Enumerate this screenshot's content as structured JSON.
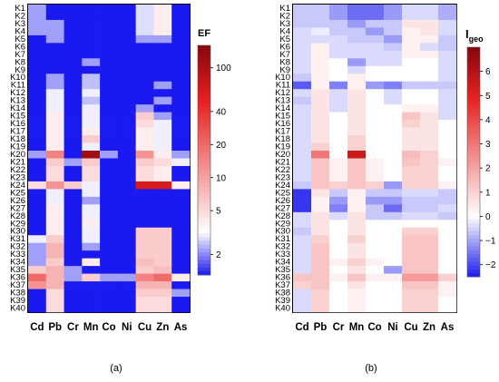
{
  "chart_data": [
    {
      "type": "heatmap",
      "panel_label": "(a)",
      "colorbar_title": "EF",
      "colorbar_ticks": [
        {
          "value": 2,
          "label": "2"
        },
        {
          "value": 5,
          "label": "5"
        },
        {
          "value": 10,
          "label": "10"
        },
        {
          "value": 20,
          "label": "20"
        },
        {
          "value": 40,
          "label": "40"
        },
        {
          "value": 100,
          "label": "100"
        }
      ],
      "colorbar_range": [
        1.3,
        160
      ],
      "colorbar_scale": "log",
      "columns": [
        "Cd",
        "Pb",
        "Cr",
        "Mn",
        "Co",
        "Ni",
        "Cu",
        "Zn",
        "As"
      ],
      "rows": [
        "K1",
        "K2",
        "K3",
        "K4",
        "K5",
        "K6",
        "K7",
        "K8",
        "K9",
        "K10",
        "K11",
        "K12",
        "K13",
        "K14",
        "K15",
        "K16",
        "K17",
        "K18",
        "K19",
        "K20",
        "K21",
        "K22",
        "K23",
        "K24",
        "K25",
        "K26",
        "K27",
        "K28",
        "K29",
        "K30",
        "K31",
        "K32",
        "K33",
        "K34",
        "K35",
        "K36",
        "K37",
        "K38",
        "K39",
        "K40"
      ],
      "values": [
        [
          2.2,
          1,
          1,
          1,
          1,
          1,
          2.8,
          4,
          1
        ],
        [
          2.2,
          1,
          1,
          1,
          1,
          1,
          2.8,
          4,
          1
        ],
        [
          2.2,
          2.2,
          1,
          1,
          1,
          1,
          2.8,
          4,
          1
        ],
        [
          2.2,
          2.2,
          1,
          1,
          1,
          1,
          2.8,
          4,
          1
        ],
        [
          1,
          2.2,
          1,
          1,
          1,
          1,
          2.2,
          2.2,
          1
        ],
        [
          1,
          1,
          1,
          1,
          1,
          1,
          1,
          1,
          1
        ],
        [
          1,
          1,
          1,
          1,
          1,
          1,
          1,
          1,
          1
        ],
        [
          1,
          1,
          1,
          2.2,
          1,
          1,
          1,
          1,
          1
        ],
        [
          1,
          1,
          1,
          1,
          1,
          1,
          1,
          1,
          1
        ],
        [
          1,
          2.2,
          1,
          2.5,
          1,
          1,
          1,
          1,
          1
        ],
        [
          1,
          2.2,
          1,
          2.5,
          1,
          1,
          1,
          2.2,
          1
        ],
        [
          1,
          3,
          1,
          3,
          1,
          1,
          1,
          1,
          1
        ],
        [
          1,
          3,
          1,
          2.5,
          1,
          1,
          1,
          2.2,
          1
        ],
        [
          1,
          3,
          1,
          3,
          1,
          1,
          2.2,
          1,
          1
        ],
        [
          1,
          4,
          1,
          3,
          1,
          1,
          6,
          2.2,
          1
        ],
        [
          1,
          4,
          1,
          3,
          1,
          1,
          5,
          3,
          1
        ],
        [
          1,
          4,
          1,
          4,
          1,
          1,
          4,
          3,
          1
        ],
        [
          1,
          4,
          1,
          6,
          1,
          1,
          4,
          3,
          1
        ],
        [
          1,
          4,
          1,
          3,
          1,
          1,
          4,
          3,
          1
        ],
        [
          2.2,
          15,
          1,
          120,
          2.2,
          1,
          12,
          4,
          2.2
        ],
        [
          1,
          6,
          2.2,
          6,
          1,
          1,
          6,
          5,
          3
        ],
        [
          1,
          5,
          1,
          5,
          1,
          1,
          5,
          4,
          1
        ],
        [
          1,
          5,
          1,
          5,
          1,
          1,
          5,
          4,
          1
        ],
        [
          5,
          12,
          6,
          3,
          1,
          1,
          60,
          60,
          4
        ],
        [
          1,
          3,
          1,
          3,
          1,
          1,
          1,
          1,
          1
        ],
        [
          1,
          3,
          1,
          2.2,
          1,
          1,
          1,
          1,
          1
        ],
        [
          1,
          4,
          1,
          3,
          1,
          1,
          1,
          1,
          1
        ],
        [
          1,
          4,
          1,
          3,
          1,
          1,
          1,
          1,
          1
        ],
        [
          1,
          4,
          1,
          4,
          1,
          1,
          1,
          1,
          1
        ],
        [
          1,
          4,
          1,
          3,
          1,
          1,
          6,
          6,
          1
        ],
        [
          3,
          6,
          1,
          3,
          1,
          1,
          6,
          6,
          1
        ],
        [
          2.2,
          8,
          1,
          2.2,
          1,
          1,
          6,
          6,
          1
        ],
        [
          2.2,
          8,
          1,
          1,
          1,
          1,
          6,
          6,
          1
        ],
        [
          2.2,
          6,
          1,
          4,
          1,
          1,
          7,
          6,
          1
        ],
        [
          6,
          8,
          2.2,
          1,
          1,
          1,
          6,
          7,
          1
        ],
        [
          20,
          8,
          2.2,
          6,
          2.2,
          2.2,
          15,
          20,
          4
        ],
        [
          12,
          8,
          1,
          1,
          1,
          1,
          8,
          8,
          1
        ],
        [
          1,
          5,
          1,
          1,
          1,
          1,
          6,
          6,
          2.2
        ],
        [
          1,
          5,
          1,
          1,
          1,
          1,
          5,
          5,
          1
        ],
        [
          1,
          5,
          1,
          1,
          1,
          1,
          5,
          5,
          1
        ]
      ]
    },
    {
      "type": "heatmap",
      "panel_label": "(b)",
      "colorbar_title": "Igeo",
      "colorbar_title_main": "I",
      "colorbar_title_sub": "geo",
      "colorbar_ticks": [
        {
          "value": -2,
          "label": "−2"
        },
        {
          "value": -1,
          "label": "−1"
        },
        {
          "value": 0,
          "label": "0"
        },
        {
          "value": 1,
          "label": "1"
        },
        {
          "value": 2,
          "label": "2"
        },
        {
          "value": 3,
          "label": "3"
        },
        {
          "value": 4,
          "label": "4"
        },
        {
          "value": 5,
          "label": "5"
        },
        {
          "value": 6,
          "label": "6"
        }
      ],
      "colorbar_range": [
        -2.5,
        7
      ],
      "colorbar_scale": "linear",
      "columns": [
        "Cd",
        "Pb",
        "Cr",
        "Mn",
        "Co",
        "Ni",
        "Cu",
        "Zn",
        "As"
      ],
      "rows": [
        "K1",
        "K2",
        "K3",
        "K4",
        "K5",
        "K6",
        "K7",
        "K8",
        "K9",
        "K10",
        "K11",
        "K12",
        "K13",
        "K14",
        "K15",
        "K16",
        "K17",
        "K18",
        "K19",
        "K20",
        "K21",
        "K22",
        "K23",
        "K24",
        "K25",
        "K26",
        "K27",
        "K28",
        "K29",
        "K30",
        "K31",
        "K32",
        "K33",
        "K34",
        "K35",
        "K36",
        "K37",
        "K38",
        "K39",
        "K40"
      ],
      "values": [
        [
          -0.6,
          -0.6,
          -1.1,
          -1.6,
          -1.6,
          -1.1,
          -0.4,
          -0.4,
          -0.9
        ],
        [
          -0.6,
          -0.6,
          -1.1,
          -1.6,
          -1.6,
          -1.1,
          -0.4,
          -0.4,
          -0.9
        ],
        [
          -0.6,
          -0.6,
          -0.6,
          -1.1,
          -0.6,
          -0.6,
          0.6,
          0.6,
          -0.4
        ],
        [
          -0.4,
          -0.2,
          -0.6,
          -0.6,
          -1.1,
          -0.6,
          0.3,
          0.6,
          -0.4
        ],
        [
          -0.4,
          -0.4,
          -0.4,
          -0.6,
          -0.6,
          -1.1,
          0.3,
          0.3,
          -0.6
        ],
        [
          -0.4,
          0.3,
          -0.4,
          -0.4,
          -0.4,
          -0.6,
          0.3,
          -0.4,
          -0.6
        ],
        [
          -0.4,
          0.3,
          -0.4,
          -0.4,
          -0.4,
          -0.4,
          0.3,
          0.3,
          -0.4
        ],
        [
          -0.4,
          0.3,
          0,
          -1.1,
          -0.4,
          -0.4,
          0,
          0,
          -0.4
        ],
        [
          -0.4,
          0.3,
          0,
          -0.4,
          0,
          0,
          0,
          0,
          -0.4
        ],
        [
          -0.6,
          0.3,
          0,
          0.3,
          0,
          0,
          0,
          0,
          -0.4
        ],
        [
          -1.8,
          0.3,
          -1.4,
          0.3,
          -1.1,
          -1.4,
          -0.6,
          -0.6,
          -0.6
        ],
        [
          -0.4,
          0.6,
          -0.4,
          0.6,
          0,
          -0.4,
          0,
          0,
          -0.4
        ],
        [
          -0.6,
          0.6,
          -0.4,
          0.6,
          0,
          -0.4,
          0,
          0,
          -0.4
        ],
        [
          -0.4,
          0.6,
          -0.4,
          0.6,
          0,
          0,
          0.3,
          0.3,
          -0.4
        ],
        [
          -0.4,
          0.6,
          0,
          0.6,
          0,
          0,
          1.3,
          0.6,
          -0.4
        ],
        [
          -0.4,
          0.6,
          0,
          0.6,
          0,
          0,
          1,
          0.6,
          0
        ],
        [
          -0.4,
          0.6,
          0,
          0.6,
          0,
          0,
          0.6,
          0.6,
          0
        ],
        [
          -0.4,
          0.6,
          0,
          1,
          0,
          0,
          0.6,
          0.6,
          0
        ],
        [
          -0.4,
          1,
          0,
          1,
          0,
          0,
          0.6,
          0.6,
          0
        ],
        [
          -0.4,
          3,
          0,
          5.5,
          0,
          0,
          1.5,
          1,
          0
        ],
        [
          -0.4,
          1.3,
          0.3,
          1.3,
          0.3,
          0,
          1.3,
          1,
          0.3
        ],
        [
          -0.4,
          1.3,
          0.3,
          1.3,
          0.3,
          0,
          1,
          1,
          0
        ],
        [
          -0.4,
          1.3,
          0.3,
          1.3,
          0.3,
          0,
          1,
          1,
          0
        ],
        [
          -0.6,
          1.3,
          1,
          1.3,
          1,
          -1.1,
          1,
          1,
          0.3
        ],
        [
          -2.2,
          0.6,
          -0.6,
          0.3,
          -0.6,
          -0.6,
          -0.4,
          -0.4,
          -0.6
        ],
        [
          -2.2,
          0.3,
          -1.1,
          0.3,
          -1.1,
          -1.1,
          -0.6,
          -0.6,
          -0.6
        ],
        [
          -2.2,
          0.3,
          -1.4,
          0.3,
          -0.6,
          -1.6,
          -0.6,
          -0.6,
          -0.4
        ],
        [
          -0.4,
          0.6,
          -0.4,
          0.6,
          -0.6,
          -0.6,
          -0.4,
          -0.4,
          -0.6
        ],
        [
          -0.4,
          0.6,
          0,
          0.6,
          0,
          0,
          0,
          0,
          0
        ],
        [
          -0.6,
          0.6,
          0,
          0.6,
          0,
          0,
          1,
          1,
          0
        ],
        [
          -0.4,
          1,
          0,
          1,
          0,
          0,
          1.3,
          1.3,
          0
        ],
        [
          -0.4,
          1.3,
          0,
          0.6,
          0,
          0,
          1.3,
          1.3,
          0
        ],
        [
          -0.4,
          1.3,
          0,
          0.6,
          0,
          0,
          1.3,
          1.3,
          0
        ],
        [
          -0.4,
          1.3,
          0.3,
          1,
          0.3,
          0,
          1.3,
          1.3,
          0
        ],
        [
          -0.4,
          1.3,
          0,
          0.6,
          0,
          -1.1,
          1.3,
          1.3,
          0
        ],
        [
          1.3,
          1.3,
          0.3,
          1.3,
          0.3,
          0.3,
          2.2,
          2.2,
          1
        ],
        [
          1,
          1.3,
          0,
          0.6,
          0,
          0,
          1.3,
          1.3,
          0.3
        ],
        [
          -0.4,
          1,
          0,
          0.3,
          0,
          0,
          1,
          1,
          0.3
        ],
        [
          -0.4,
          1,
          0,
          0.3,
          0,
          0,
          1,
          1,
          0
        ],
        [
          -0.4,
          1,
          0,
          0.3,
          0,
          0,
          1,
          1,
          0
        ]
      ]
    }
  ]
}
